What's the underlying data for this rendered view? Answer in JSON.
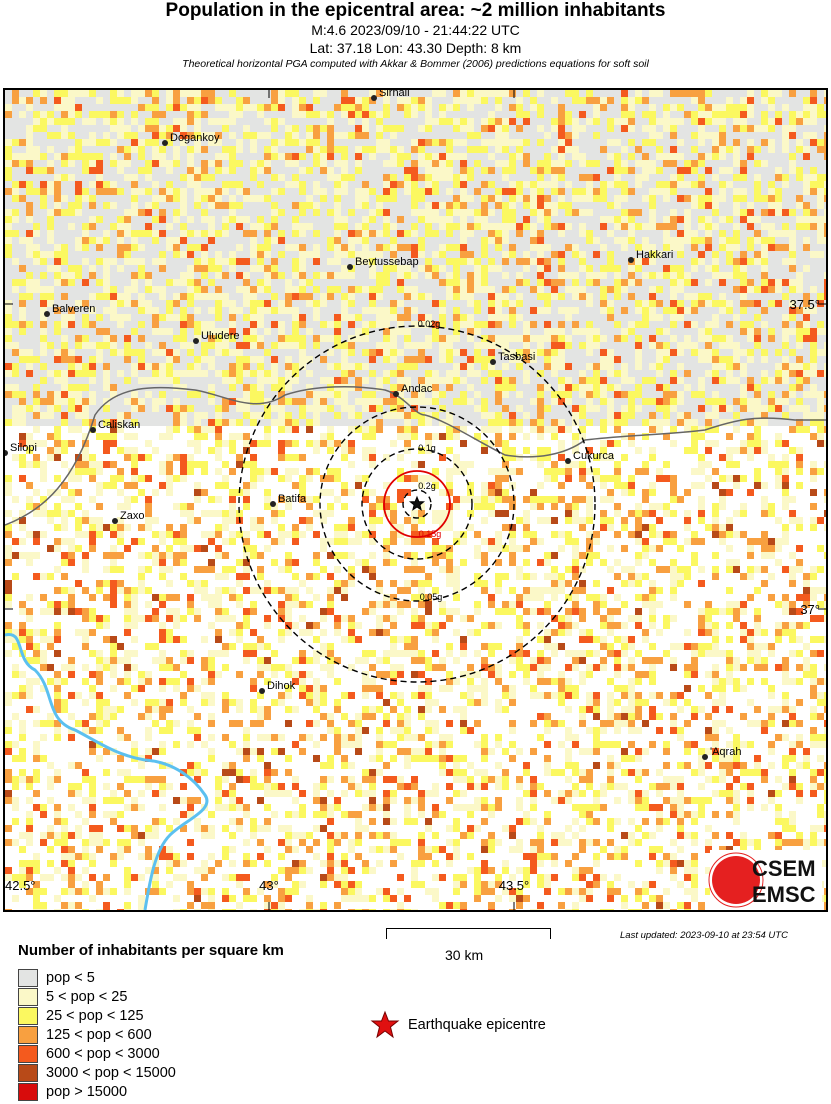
{
  "header": {
    "title": "Population in the epicentral area: ~2 million inhabitants",
    "event": "M:4.6 2023/09/10 - 21:44:22 UTC",
    "location": "Lat: 37.18 Lon: 43.30 Depth: 8 km",
    "note": "Theoretical horizontal PGA computed with Akkar & Bommer (2006) predictions equations for soft soil"
  },
  "map": {
    "epicentre": {
      "lat": 37.18,
      "lon": 43.3
    },
    "lat_ticks": [
      "37.5°",
      "37°"
    ],
    "lon_ticks": [
      "42.5°",
      "43°",
      "43.5°"
    ],
    "pga_contours": [
      {
        "label": "0.2g",
        "color": "#000000",
        "style": "dashed"
      },
      {
        "label": "0.15g",
        "color": "#e00000",
        "style": "solid"
      },
      {
        "label": "0.1g",
        "color": "#000000",
        "style": "dashed"
      },
      {
        "label": "0.05g",
        "color": "#000000",
        "style": "dashed"
      },
      {
        "label": "0.02g",
        "color": "#000000",
        "style": "dashed"
      }
    ],
    "cities": [
      "Sirnali",
      "Dogankoy",
      "Beytussebap",
      "Hakkari",
      "Balveren",
      "Uludere",
      "Tasbasi",
      "Andac",
      "Caliskan",
      "Cukurca",
      "Silopi",
      "Zaxo",
      "Batifa",
      "Dihok",
      "'Aqrah"
    ],
    "river_color": "#5bc0f0",
    "border_color": "#666666",
    "logo": "CSEM EMSC"
  },
  "legend": {
    "title": "Number of inhabitants per square km",
    "items": [
      {
        "label": "pop < 5",
        "color": "#e3e4e3"
      },
      {
        "label": "5 < pop < 25",
        "color": "#fbf8c8"
      },
      {
        "label": "25 < pop < 125",
        "color": "#fbf860"
      },
      {
        "label": "125 < pop < 600",
        "color": "#f8a040"
      },
      {
        "label": "600 < pop < 3000",
        "color": "#f45a1e"
      },
      {
        "label": "3000 < pop < 15000",
        "color": "#b84a18"
      },
      {
        "label": "pop > 15000",
        "color": "#d80c0c"
      }
    ]
  },
  "scale_bar": "30 km",
  "epicentre_label": "Earthquake epicentre",
  "last_updated": "Last updated: 2023-09-10 at 23:54 UTC"
}
